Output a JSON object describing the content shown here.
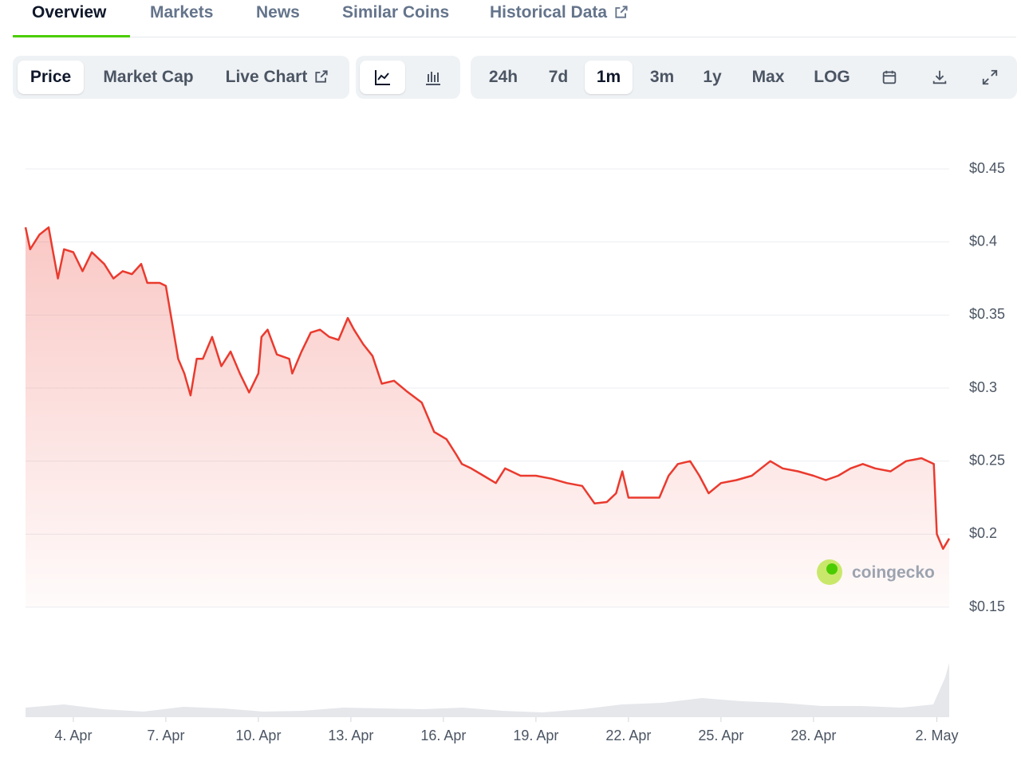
{
  "tabs": [
    "Overview",
    "Markets",
    "News",
    "Similar Coins",
    "Historical Data"
  ],
  "chart_buttons": [
    "Price",
    "Market Cap",
    "Live Chart"
  ],
  "range_buttons": [
    "24h",
    "7d",
    "1m",
    "3m",
    "1y",
    "Max",
    "LOG"
  ],
  "watermark": "coingecko",
  "chart_data": {
    "type": "line",
    "color": "#ea3a2e",
    "x": [
      2.45,
      2.6,
      2.9,
      3.2,
      3.3,
      3.5,
      3.7,
      4.0,
      4.3,
      4.6,
      5.0,
      5.3,
      5.6,
      5.9,
      6.2,
      6.4,
      6.8,
      7.0,
      7.2,
      7.4,
      7.6,
      7.8,
      8.0,
      8.2,
      8.5,
      8.8,
      9.1,
      9.4,
      9.7,
      10.0,
      10.1,
      10.3,
      10.6,
      11.0,
      11.1,
      11.4,
      11.7,
      12.0,
      12.3,
      12.6,
      12.9,
      13.1,
      13.4,
      13.7,
      14.0,
      14.4,
      14.8,
      15.3,
      15.7,
      16.1,
      16.4,
      16.6,
      16.9,
      17.3,
      17.7,
      18.0,
      18.5,
      19.0,
      19.5,
      20.0,
      20.5,
      20.9,
      21.3,
      21.6,
      21.8,
      22.0,
      22.5,
      23.0,
      23.3,
      23.6,
      24.0,
      24.3,
      24.6,
      25.0,
      25.5,
      26.0,
      26.3,
      26.6,
      27.0,
      27.5,
      28.0,
      28.4,
      28.8,
      29.2,
      29.6,
      30.0,
      30.5,
      31.0,
      31.5,
      31.9,
      32.0,
      32.2,
      32.4
    ],
    "values": [
      0.41,
      0.395,
      0.405,
      0.41,
      0.398,
      0.375,
      0.395,
      0.393,
      0.38,
      0.393,
      0.385,
      0.375,
      0.38,
      0.378,
      0.385,
      0.372,
      0.372,
      0.37,
      0.345,
      0.32,
      0.31,
      0.295,
      0.32,
      0.32,
      0.335,
      0.315,
      0.325,
      0.31,
      0.297,
      0.31,
      0.335,
      0.34,
      0.323,
      0.32,
      0.31,
      0.325,
      0.338,
      0.34,
      0.335,
      0.333,
      0.348,
      0.34,
      0.33,
      0.322,
      0.303,
      0.305,
      0.298,
      0.29,
      0.27,
      0.265,
      0.255,
      0.248,
      0.245,
      0.24,
      0.235,
      0.245,
      0.24,
      0.24,
      0.238,
      0.235,
      0.233,
      0.221,
      0.222,
      0.228,
      0.243,
      0.225,
      0.225,
      0.225,
      0.24,
      0.248,
      0.25,
      0.24,
      0.228,
      0.235,
      0.237,
      0.24,
      0.245,
      0.25,
      0.245,
      0.243,
      0.24,
      0.237,
      0.24,
      0.245,
      0.248,
      0.245,
      0.243,
      0.25,
      0.252,
      0.248,
      0.2,
      0.19,
      0.197
    ],
    "xlim": [
      2.45,
      32.4
    ],
    "xticks": [
      {
        "value": 4,
        "label": "4. Apr"
      },
      {
        "value": 7,
        "label": "7. Apr"
      },
      {
        "value": 10,
        "label": "10. Apr"
      },
      {
        "value": 13,
        "label": "13. Apr"
      },
      {
        "value": 16,
        "label": "16. Apr"
      },
      {
        "value": 19,
        "label": "19. Apr"
      },
      {
        "value": 22,
        "label": "22. Apr"
      },
      {
        "value": 25,
        "label": "25. Apr"
      },
      {
        "value": 28,
        "label": "28. Apr"
      },
      {
        "value": 32,
        "label": "2. May"
      }
    ],
    "ylim": [
      0.15,
      0.45
    ],
    "yticks": [
      {
        "value": 0.15,
        "label": "$0.15"
      },
      {
        "value": 0.2,
        "label": "$0.2"
      },
      {
        "value": 0.25,
        "label": "$0.25"
      },
      {
        "value": 0.3,
        "label": "$0.3"
      },
      {
        "value": 0.35,
        "label": "$0.35"
      },
      {
        "value": 0.4,
        "label": "$0.4"
      },
      {
        "value": 0.45,
        "label": "$0.45"
      }
    ],
    "grid": true
  }
}
